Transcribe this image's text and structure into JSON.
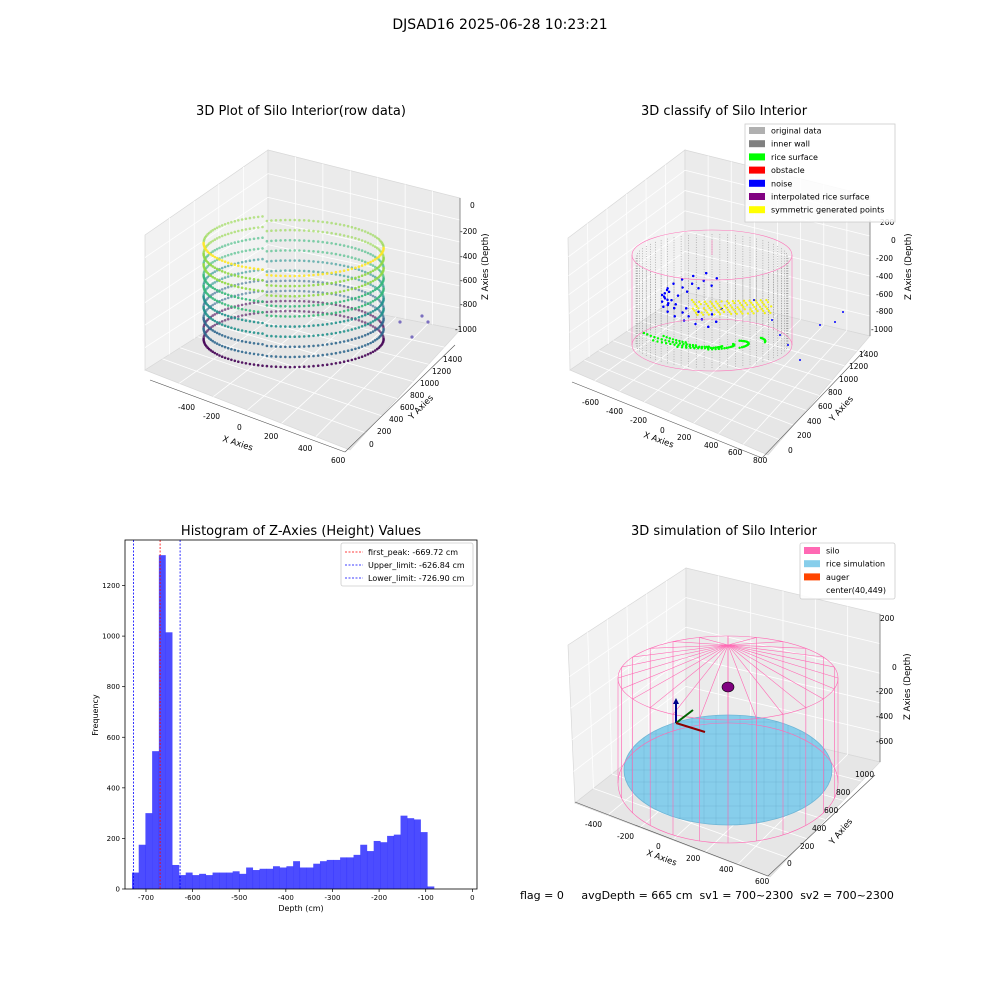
{
  "figure": {
    "suptitle": "DJSAD16 2025-06-28 10:23:21",
    "footer": "flag = 0     avgDepth = 665 cm  sv1 = 700~2300  sv2 = 700~2300"
  },
  "panels": {
    "raw": {
      "title": "3D Plot of Silo Interior(row data)",
      "xlabel": "X Axies",
      "ylabel": "Y Axies",
      "zlabel": "Z Axies (Depth)",
      "xticks": [
        "-400",
        "-200",
        "0",
        "200",
        "400",
        "600"
      ],
      "yticks": [
        "0",
        "200",
        "400",
        "600",
        "800",
        "1000",
        "1200",
        "1400"
      ],
      "zticks": [
        "0",
        "-200",
        "-400",
        "-600",
        "-800",
        "-1000"
      ],
      "colormap": [
        "#440154",
        "#31688e",
        "#21918c",
        "#35b779",
        "#90d743",
        "#fde725"
      ]
    },
    "classify": {
      "title": "3D classify of Silo Interior",
      "xlabel": "X Axies",
      "ylabel": "Y Axies",
      "zlabel": "Z Axies (Depth)",
      "xticks": [
        "-600",
        "-400",
        "-200",
        "0",
        "200",
        "400",
        "600",
        "800"
      ],
      "yticks": [
        "0",
        "200",
        "400",
        "600",
        "800",
        "1000",
        "1200",
        "1400"
      ],
      "zticks": [
        "200",
        "0",
        "-200",
        "-400",
        "-600",
        "-800",
        "-1000"
      ],
      "legend": [
        {
          "label": "original data",
          "color": "#b0b0b0"
        },
        {
          "label": "inner wall",
          "color": "#808080"
        },
        {
          "label": "rice surface",
          "color": "#00ff00"
        },
        {
          "label": "obstacle",
          "color": "#ff0000"
        },
        {
          "label": "noise",
          "color": "#0000ff"
        },
        {
          "label": "interpolated rice surface",
          "color": "#800080"
        },
        {
          "label": "symmetric generated points",
          "color": "#ffff00"
        }
      ]
    },
    "simulation": {
      "title": "3D simulation of Silo Interior",
      "xlabel": "X Axies",
      "ylabel": "Y Axies",
      "zlabel": "Z Axies (Depth)",
      "xticks": [
        "-400",
        "-200",
        "0",
        "200",
        "400",
        "600"
      ],
      "yticks": [
        "0",
        "200",
        "400",
        "600",
        "800",
        "1000"
      ],
      "zticks": [
        "200",
        "0",
        "-200",
        "-400",
        "-600"
      ],
      "legend": [
        {
          "label": "silo",
          "color": "#ff69b4"
        },
        {
          "label": "rice simulation",
          "color": "#87ceeb"
        },
        {
          "label": "auger",
          "color": "#ff4500"
        },
        {
          "label": "center(40,449)",
          "color": ""
        }
      ]
    }
  },
  "chart_data": {
    "type": "bar",
    "title": "Histogram of Z-Axies (Height) Values",
    "xlabel": "Depth (cm)",
    "ylabel": "Frequency",
    "xlim": [
      -745,
      10
    ],
    "ylim": [
      0,
      1380
    ],
    "xticks": [
      -700,
      -600,
      -500,
      -400,
      -300,
      -200,
      -100,
      0
    ],
    "yticks": [
      0,
      200,
      400,
      600,
      800,
      1000,
      1200
    ],
    "bin_start": -730,
    "bin_width": 14.4,
    "values": [
      65,
      175,
      300,
      545,
      1320,
      1015,
      95,
      55,
      65,
      55,
      60,
      55,
      65,
      65,
      65,
      70,
      60,
      85,
      75,
      80,
      80,
      90,
      85,
      90,
      110,
      85,
      85,
      100,
      110,
      115,
      115,
      125,
      125,
      135,
      175,
      150,
      190,
      185,
      210,
      215,
      290,
      280,
      275,
      225,
      10
    ],
    "bar_color": "#0000ff",
    "vlines": [
      {
        "label": "first_peak: -669.72 cm",
        "x": -669.72,
        "color": "#ff0000"
      },
      {
        "label": "Upper_limit: -626.84 cm",
        "x": -626.84,
        "color": "#0000ff"
      },
      {
        "label": "Lower_limit: -726.90 cm",
        "x": -726.9,
        "color": "#0000ff"
      }
    ],
    "legend_position": "top-right"
  }
}
